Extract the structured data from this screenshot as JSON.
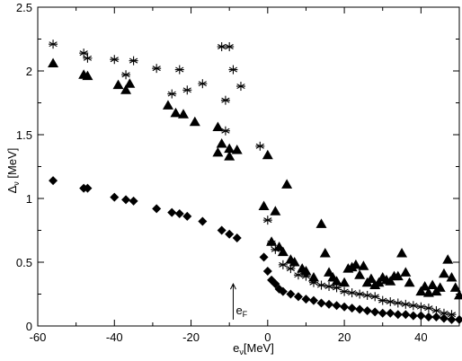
{
  "chart_data": {
    "type": "scatter",
    "xlabel": "e_ν[MeV]",
    "ylabel": "Δ_ν [MeV]",
    "xlim": [
      -60,
      50
    ],
    "ylim": [
      0,
      2.5
    ],
    "grid": false,
    "legend": "none",
    "x_ticks": [
      -60,
      -40,
      -20,
      0,
      20,
      40
    ],
    "x_tick_labels": [
      "-60",
      "-40",
      "-20",
      "0",
      "20",
      "40"
    ],
    "y_ticks": [
      0,
      0.5,
      1,
      1.5,
      2,
      2.5
    ],
    "y_tick_labels": [
      "0",
      "0.5",
      "1",
      "1.5",
      "2",
      "2.5"
    ],
    "annotation": {
      "text": "e_F",
      "x": -9,
      "y_from": 0.05,
      "y_to": 0.33
    },
    "series": [
      {
        "marker": "star",
        "points": [
          [
            -56,
            2.21
          ],
          [
            -48,
            2.14
          ],
          [
            -47,
            2.1
          ],
          [
            -40,
            2.09
          ],
          [
            -37,
            1.97
          ],
          [
            -35,
            2.08
          ],
          [
            -29,
            2.02
          ],
          [
            -25,
            1.82
          ],
          [
            -23,
            2.01
          ],
          [
            -21,
            1.85
          ],
          [
            -17,
            1.9
          ],
          [
            -12,
            2.19
          ],
          [
            -10,
            2.19
          ],
          [
            -11,
            1.77
          ],
          [
            -9,
            2.01
          ],
          [
            -7,
            1.88
          ],
          [
            -11,
            1.53
          ],
          [
            -2,
            1.41
          ],
          [
            0,
            0.83
          ],
          [
            1,
            0.65
          ],
          [
            2,
            0.6
          ],
          [
            4,
            0.48
          ],
          [
            6,
            0.45
          ],
          [
            8,
            0.4
          ],
          [
            10,
            0.39
          ],
          [
            12,
            0.34
          ],
          [
            14,
            0.32
          ],
          [
            16,
            0.31
          ],
          [
            18,
            0.3
          ],
          [
            20,
            0.27
          ],
          [
            22,
            0.26
          ],
          [
            24,
            0.25
          ],
          [
            26,
            0.24
          ],
          [
            28,
            0.23
          ],
          [
            30,
            0.2
          ],
          [
            32,
            0.19
          ],
          [
            34,
            0.18
          ],
          [
            36,
            0.17
          ],
          [
            38,
            0.16
          ],
          [
            40,
            0.15
          ],
          [
            42,
            0.14
          ],
          [
            44,
            0.12
          ],
          [
            46,
            0.1
          ],
          [
            48,
            0.09
          ]
        ]
      },
      {
        "marker": "triangle",
        "points": [
          [
            -56,
            2.06
          ],
          [
            -48,
            1.97
          ],
          [
            -47,
            1.96
          ],
          [
            -39,
            1.89
          ],
          [
            -37,
            1.85
          ],
          [
            -36,
            1.9
          ],
          [
            -26,
            1.73
          ],
          [
            -24,
            1.67
          ],
          [
            -22,
            1.66
          ],
          [
            -19,
            1.6
          ],
          [
            -13,
            1.56
          ],
          [
            -13,
            1.36
          ],
          [
            -10,
            1.33
          ],
          [
            -10,
            1.39
          ],
          [
            -8,
            1.38
          ],
          [
            -12,
            1.43
          ],
          [
            -1,
            0.94
          ],
          [
            0,
            1.34
          ],
          [
            2,
            0.9
          ],
          [
            5,
            1.11
          ],
          [
            1,
            0.66
          ],
          [
            3,
            0.62
          ],
          [
            4,
            0.58
          ],
          [
            6,
            0.52
          ],
          [
            7,
            0.5
          ],
          [
            9,
            0.45
          ],
          [
            10,
            0.43
          ],
          [
            12,
            0.38
          ],
          [
            14,
            0.8
          ],
          [
            15,
            0.57
          ],
          [
            16,
            0.42
          ],
          [
            17,
            0.38
          ],
          [
            18,
            0.35
          ],
          [
            20,
            0.34
          ],
          [
            21,
            0.45
          ],
          [
            22,
            0.46
          ],
          [
            23,
            0.48
          ],
          [
            24,
            0.4
          ],
          [
            25,
            0.47
          ],
          [
            26,
            0.34
          ],
          [
            27,
            0.37
          ],
          [
            28,
            0.32
          ],
          [
            29,
            0.34
          ],
          [
            30,
            0.38
          ],
          [
            31,
            0.36
          ],
          [
            32,
            0.35
          ],
          [
            33,
            0.39
          ],
          [
            34,
            0.39
          ],
          [
            35,
            0.57
          ],
          [
            36,
            0.42
          ],
          [
            37,
            0.34
          ],
          [
            40,
            0.27
          ],
          [
            41,
            0.31
          ],
          [
            42,
            0.26
          ],
          [
            43,
            0.32
          ],
          [
            44,
            0.27
          ],
          [
            45,
            0.3
          ],
          [
            46,
            0.41
          ],
          [
            47,
            0.52
          ],
          [
            48,
            0.38
          ],
          [
            49,
            0.3
          ],
          [
            50,
            0.24
          ]
        ]
      },
      {
        "marker": "diamond",
        "points": [
          [
            -56,
            1.14
          ],
          [
            -48,
            1.08
          ],
          [
            -47,
            1.08
          ],
          [
            -40,
            1.01
          ],
          [
            -37,
            0.99
          ],
          [
            -35,
            0.98
          ],
          [
            -29,
            0.92
          ],
          [
            -25,
            0.89
          ],
          [
            -23,
            0.88
          ],
          [
            -21,
            0.86
          ],
          [
            -17,
            0.82
          ],
          [
            -12,
            0.75
          ],
          [
            -10,
            0.72
          ],
          [
            -8,
            0.69
          ],
          [
            -1,
            0.54
          ],
          [
            0,
            0.43
          ],
          [
            1,
            0.36
          ],
          [
            2,
            0.33
          ],
          [
            3,
            0.29
          ],
          [
            4,
            0.27
          ],
          [
            6,
            0.25
          ],
          [
            8,
            0.23
          ],
          [
            10,
            0.21
          ],
          [
            12,
            0.2
          ],
          [
            14,
            0.18
          ],
          [
            16,
            0.17
          ],
          [
            18,
            0.16
          ],
          [
            20,
            0.15
          ],
          [
            22,
            0.14
          ],
          [
            24,
            0.13
          ],
          [
            26,
            0.12
          ],
          [
            28,
            0.11
          ],
          [
            30,
            0.1
          ],
          [
            32,
            0.1
          ],
          [
            34,
            0.09
          ],
          [
            36,
            0.09
          ],
          [
            38,
            0.08
          ],
          [
            40,
            0.08
          ],
          [
            42,
            0.07
          ],
          [
            44,
            0.07
          ],
          [
            46,
            0.06
          ],
          [
            48,
            0.05
          ],
          [
            50,
            0.05
          ]
        ]
      }
    ]
  }
}
